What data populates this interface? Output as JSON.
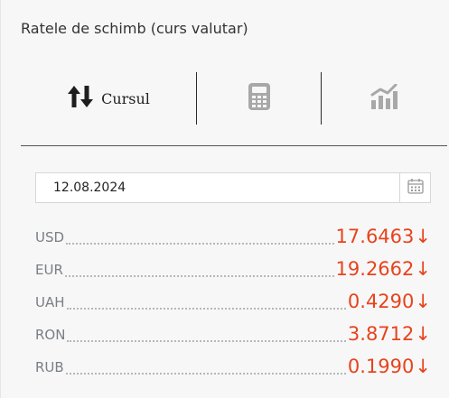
{
  "widget": {
    "title": "Ratele de schimb (curs valutar)"
  },
  "tabs": {
    "rates": {
      "label": "Cursul",
      "icon": "up-down-arrows-icon"
    },
    "converter": {
      "icon": "calculator-icon"
    },
    "chart": {
      "icon": "bar-chart-icon"
    }
  },
  "date_picker": {
    "value": "12.08.2024",
    "icon": "calendar-icon"
  },
  "rates": [
    {
      "code": "USD",
      "value": "17.6463",
      "trend": "↓"
    },
    {
      "code": "EUR",
      "value": "19.2662",
      "trend": "↓"
    },
    {
      "code": "UAH",
      "value": "0.4290",
      "trend": "↓"
    },
    {
      "code": "RON",
      "value": "3.8712",
      "trend": "↓"
    },
    {
      "code": "RUB",
      "value": "0.1990",
      "trend": "↓"
    }
  ],
  "colors": {
    "accent": "#e8431c",
    "code_text": "#7a7f85",
    "icon_gray": "#a8a8a8",
    "background": "#f7f7f7"
  }
}
